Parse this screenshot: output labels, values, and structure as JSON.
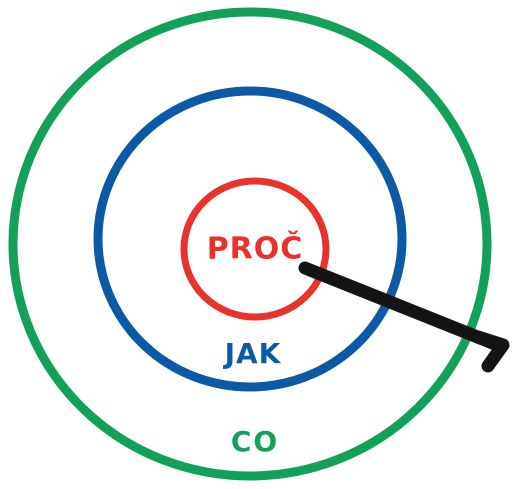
{
  "diagram": {
    "labels": {
      "inner": "PROČ",
      "middle": "JAK",
      "outer": "CO"
    },
    "colors": {
      "inner": "#e8322b",
      "middle": "#0c5aa6",
      "outer": "#12a05a",
      "arrow": "#141414",
      "background": "#ffffff"
    }
  }
}
